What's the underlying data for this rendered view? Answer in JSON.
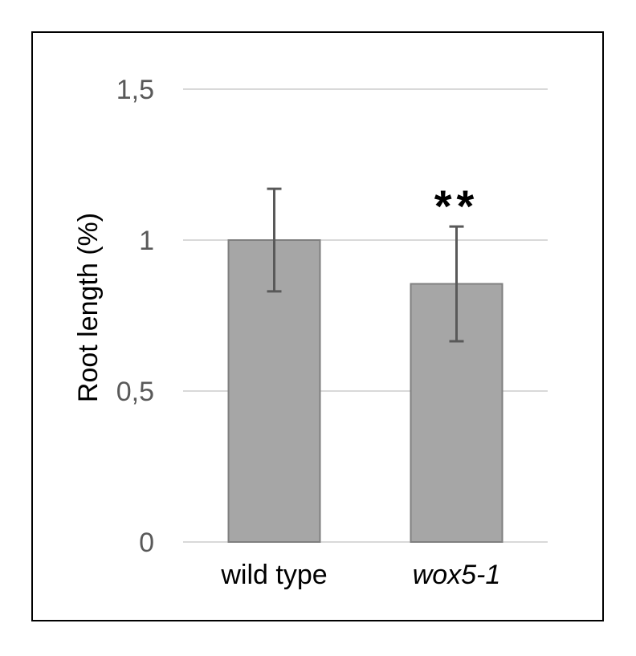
{
  "chart_data": {
    "type": "bar",
    "ylabel": "Root length (%)",
    "categories": [
      "wild type",
      "wox5-1"
    ],
    "category_italic": [
      false,
      true
    ],
    "values": [
      1.0,
      0.855
    ],
    "errors": [
      0.17,
      0.19
    ],
    "significance": [
      "",
      "**"
    ],
    "ylim": [
      0,
      1.5
    ],
    "yticks": [
      0,
      0.5,
      1,
      1.5
    ],
    "ytick_labels": [
      "0",
      "0,5",
      "1",
      "1,5"
    ],
    "grid": true,
    "bar_color": "#a6a6a6",
    "bar_edge_color": "#7f7f7f",
    "error_color": "#595959",
    "grid_color": "#d9d9d9"
  }
}
